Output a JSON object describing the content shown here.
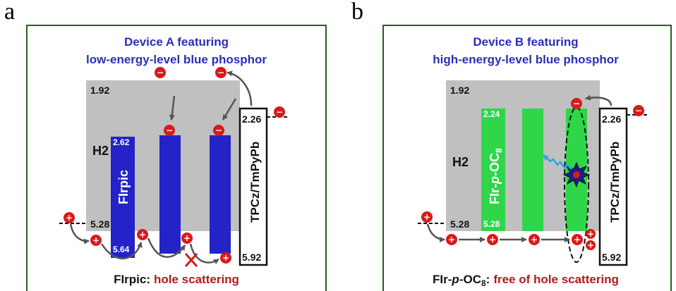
{
  "panel_a": {
    "letter": "a",
    "title_line1": "Device A featuring",
    "title_line2": "low-energy-level blue phosphor",
    "host_top": "1.92",
    "host_bottom": "5.28",
    "host_label": "H2",
    "dopant_top": "2.62",
    "dopant_bottom": "5.64",
    "dopant_label": "FIrpic",
    "etl_top": "2.26",
    "etl_bottom": "5.92",
    "etl_label": "TPCz/TmPyPb",
    "caption_material": "FIrpic:",
    "caption_text": "hole scattering"
  },
  "panel_b": {
    "letter": "b",
    "title_line1": "Device B featuring",
    "title_line2": "high-energy-level blue phosphor",
    "host_top": "1.92",
    "host_bottom": "5.28",
    "host_label": "H2",
    "dopant_top": "2.24",
    "dopant_bottom": "5.28",
    "dopant_label_pre": "FIr-",
    "dopant_label_p": "p",
    "dopant_label_mid": "-OC",
    "dopant_label_sub": "8",
    "etl_top": "2.26",
    "etl_bottom": "5.92",
    "etl_label": "TPCz/TmPyPb",
    "caption_pre": "FIr-",
    "caption_p": "p",
    "caption_mid": "-OC",
    "caption_sub": "8",
    "caption_colon": ":",
    "caption_text": "free of hole scattering"
  },
  "symbols": {
    "electron": "−",
    "hole": "+"
  },
  "colors": {
    "frame": "#2d5a27",
    "host_gray": "#c0c0c0",
    "blue_dopant": "#2323c8",
    "green_dopant": "#2fd64a",
    "charge_red": "#d91a1a",
    "title_blue": "#2a2fb8",
    "caption_red": "#b01c1c",
    "emission_cyan": "#29a8e0"
  }
}
